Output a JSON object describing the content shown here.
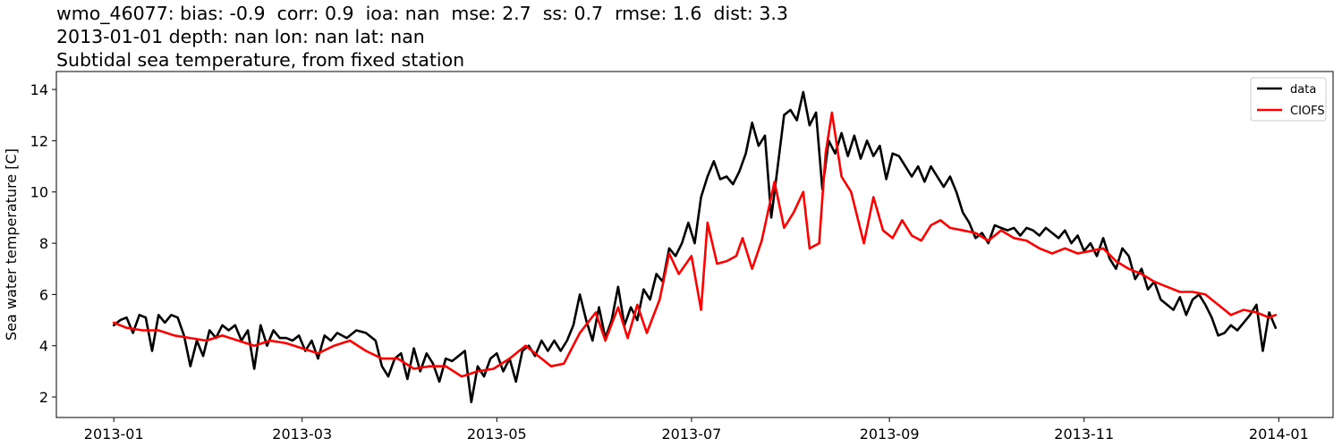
{
  "chart_data": {
    "type": "line",
    "title_lines": [
      "wmo_46077: bias: -0.9  corr: 0.9  ioa: nan  mse: 2.7  ss: 0.7  rmse: 1.6  dist: 3.3",
      "2013-01-01 depth: nan lon: nan lat: nan",
      "Subtidal sea temperature, from fixed station"
    ],
    "xlabel": "",
    "ylabel": "Sea water temperature [C]",
    "x_ticks": [
      "2013-01",
      "2013-03",
      "2013-05",
      "2013-07",
      "2013-09",
      "2013-11",
      "2014-01"
    ],
    "y_ticks": [
      2,
      4,
      6,
      8,
      10,
      12,
      14
    ],
    "xlim": [
      "2012-12-14",
      "2014-01-18"
    ],
    "ylim": [
      1.2,
      14.7
    ],
    "legend_position": "top-right",
    "series": [
      {
        "name": "data",
        "color": "#000000",
        "points": [
          [
            "2013-01-01",
            4.8
          ],
          [
            "2013-01-03",
            5.0
          ],
          [
            "2013-01-05",
            5.1
          ],
          [
            "2013-01-07",
            4.5
          ],
          [
            "2013-01-09",
            5.2
          ],
          [
            "2013-01-11",
            5.1
          ],
          [
            "2013-01-13",
            3.8
          ],
          [
            "2013-01-15",
            5.2
          ],
          [
            "2013-01-17",
            4.9
          ],
          [
            "2013-01-19",
            5.2
          ],
          [
            "2013-01-21",
            5.1
          ],
          [
            "2013-01-23",
            4.4
          ],
          [
            "2013-01-25",
            3.2
          ],
          [
            "2013-01-27",
            4.2
          ],
          [
            "2013-01-29",
            3.6
          ],
          [
            "2013-01-31",
            4.6
          ],
          [
            "2013-02-02",
            4.3
          ],
          [
            "2013-02-04",
            4.8
          ],
          [
            "2013-02-06",
            4.6
          ],
          [
            "2013-02-08",
            4.8
          ],
          [
            "2013-02-10",
            4.2
          ],
          [
            "2013-02-12",
            4.6
          ],
          [
            "2013-02-14",
            3.1
          ],
          [
            "2013-02-16",
            4.8
          ],
          [
            "2013-02-18",
            4.0
          ],
          [
            "2013-02-20",
            4.6
          ],
          [
            "2013-02-22",
            4.3
          ],
          [
            "2013-02-24",
            4.3
          ],
          [
            "2013-02-26",
            4.2
          ],
          [
            "2013-02-28",
            4.4
          ],
          [
            "2013-03-02",
            3.8
          ],
          [
            "2013-03-04",
            4.2
          ],
          [
            "2013-03-06",
            3.5
          ],
          [
            "2013-03-08",
            4.4
          ],
          [
            "2013-03-10",
            4.2
          ],
          [
            "2013-03-12",
            4.5
          ],
          [
            "2013-03-15",
            4.3
          ],
          [
            "2013-03-18",
            4.6
          ],
          [
            "2013-03-21",
            4.5
          ],
          [
            "2013-03-24",
            4.2
          ],
          [
            "2013-03-26",
            3.2
          ],
          [
            "2013-03-28",
            2.8
          ],
          [
            "2013-03-30",
            3.5
          ],
          [
            "2013-04-01",
            3.7
          ],
          [
            "2013-04-03",
            2.7
          ],
          [
            "2013-04-05",
            3.9
          ],
          [
            "2013-04-07",
            3.0
          ],
          [
            "2013-04-09",
            3.7
          ],
          [
            "2013-04-11",
            3.3
          ],
          [
            "2013-04-13",
            2.6
          ],
          [
            "2013-04-15",
            3.5
          ],
          [
            "2013-04-17",
            3.4
          ],
          [
            "2013-04-19",
            3.6
          ],
          [
            "2013-04-21",
            3.8
          ],
          [
            "2013-04-23",
            1.8
          ],
          [
            "2013-04-25",
            3.2
          ],
          [
            "2013-04-27",
            2.8
          ],
          [
            "2013-04-29",
            3.5
          ],
          [
            "2013-05-01",
            3.7
          ],
          [
            "2013-05-03",
            3.0
          ],
          [
            "2013-05-05",
            3.5
          ],
          [
            "2013-05-07",
            2.6
          ],
          [
            "2013-05-09",
            3.8
          ],
          [
            "2013-05-11",
            4.0
          ],
          [
            "2013-05-13",
            3.6
          ],
          [
            "2013-05-15",
            4.2
          ],
          [
            "2013-05-17",
            3.8
          ],
          [
            "2013-05-19",
            4.2
          ],
          [
            "2013-05-21",
            3.8
          ],
          [
            "2013-05-23",
            4.2
          ],
          [
            "2013-05-25",
            4.8
          ],
          [
            "2013-05-27",
            6.0
          ],
          [
            "2013-05-29",
            5.0
          ],
          [
            "2013-05-31",
            4.2
          ],
          [
            "2013-06-02",
            5.5
          ],
          [
            "2013-06-04",
            4.3
          ],
          [
            "2013-06-06",
            5.0
          ],
          [
            "2013-06-08",
            6.3
          ],
          [
            "2013-06-10",
            4.8
          ],
          [
            "2013-06-12",
            5.5
          ],
          [
            "2013-06-14",
            5.0
          ],
          [
            "2013-06-16",
            6.2
          ],
          [
            "2013-06-18",
            5.8
          ],
          [
            "2013-06-20",
            6.8
          ],
          [
            "2013-06-22",
            6.5
          ],
          [
            "2013-06-24",
            7.8
          ],
          [
            "2013-06-26",
            7.5
          ],
          [
            "2013-06-28",
            8.0
          ],
          [
            "2013-06-30",
            8.8
          ],
          [
            "2013-07-02",
            8.0
          ],
          [
            "2013-07-04",
            9.8
          ],
          [
            "2013-07-06",
            10.6
          ],
          [
            "2013-07-08",
            11.2
          ],
          [
            "2013-07-10",
            10.5
          ],
          [
            "2013-07-12",
            10.6
          ],
          [
            "2013-07-14",
            10.3
          ],
          [
            "2013-07-16",
            10.8
          ],
          [
            "2013-07-18",
            11.5
          ],
          [
            "2013-07-20",
            12.7
          ],
          [
            "2013-07-22",
            11.8
          ],
          [
            "2013-07-24",
            12.2
          ],
          [
            "2013-07-26",
            9.0
          ],
          [
            "2013-07-28",
            11.0
          ],
          [
            "2013-07-30",
            13.0
          ],
          [
            "2013-08-01",
            13.2
          ],
          [
            "2013-08-03",
            12.8
          ],
          [
            "2013-08-05",
            13.9
          ],
          [
            "2013-08-07",
            12.6
          ],
          [
            "2013-08-09",
            13.1
          ],
          [
            "2013-08-11",
            10.1
          ],
          [
            "2013-08-13",
            12.0
          ],
          [
            "2013-08-15",
            11.5
          ],
          [
            "2013-08-17",
            12.3
          ],
          [
            "2013-08-19",
            11.4
          ],
          [
            "2013-08-21",
            12.2
          ],
          [
            "2013-08-23",
            11.3
          ],
          [
            "2013-08-25",
            12.0
          ],
          [
            "2013-08-27",
            11.4
          ],
          [
            "2013-08-29",
            11.8
          ],
          [
            "2013-08-31",
            10.5
          ],
          [
            "2013-09-02",
            11.5
          ],
          [
            "2013-09-04",
            11.4
          ],
          [
            "2013-09-06",
            11.0
          ],
          [
            "2013-09-08",
            10.6
          ],
          [
            "2013-09-10",
            11.0
          ],
          [
            "2013-09-12",
            10.4
          ],
          [
            "2013-09-14",
            11.0
          ],
          [
            "2013-09-16",
            10.6
          ],
          [
            "2013-09-18",
            10.2
          ],
          [
            "2013-09-20",
            10.6
          ],
          [
            "2013-09-22",
            10.0
          ],
          [
            "2013-09-24",
            9.2
          ],
          [
            "2013-09-26",
            8.8
          ],
          [
            "2013-09-28",
            8.2
          ],
          [
            "2013-09-30",
            8.4
          ],
          [
            "2013-10-02",
            8.0
          ],
          [
            "2013-10-04",
            8.7
          ],
          [
            "2013-10-06",
            8.6
          ],
          [
            "2013-10-08",
            8.5
          ],
          [
            "2013-10-10",
            8.6
          ],
          [
            "2013-10-12",
            8.3
          ],
          [
            "2013-10-14",
            8.6
          ],
          [
            "2013-10-16",
            8.5
          ],
          [
            "2013-10-18",
            8.3
          ],
          [
            "2013-10-20",
            8.6
          ],
          [
            "2013-10-22",
            8.4
          ],
          [
            "2013-10-24",
            8.2
          ],
          [
            "2013-10-26",
            8.5
          ],
          [
            "2013-10-28",
            8.0
          ],
          [
            "2013-10-30",
            8.3
          ],
          [
            "2013-11-01",
            7.7
          ],
          [
            "2013-11-03",
            8.0
          ],
          [
            "2013-11-05",
            7.5
          ],
          [
            "2013-11-07",
            8.2
          ],
          [
            "2013-11-09",
            7.4
          ],
          [
            "2013-11-11",
            7.0
          ],
          [
            "2013-11-13",
            7.8
          ],
          [
            "2013-11-15",
            7.5
          ],
          [
            "2013-11-17",
            6.6
          ],
          [
            "2013-11-19",
            7.0
          ],
          [
            "2013-11-21",
            6.2
          ],
          [
            "2013-11-23",
            6.5
          ],
          [
            "2013-11-25",
            5.8
          ],
          [
            "2013-11-27",
            5.6
          ],
          [
            "2013-11-29",
            5.4
          ],
          [
            "2013-12-01",
            5.9
          ],
          [
            "2013-12-03",
            5.2
          ],
          [
            "2013-12-05",
            5.8
          ],
          [
            "2013-12-07",
            6.0
          ],
          [
            "2013-12-09",
            5.6
          ],
          [
            "2013-12-11",
            5.1
          ],
          [
            "2013-12-13",
            4.4
          ],
          [
            "2013-12-15",
            4.5
          ],
          [
            "2013-12-17",
            4.8
          ],
          [
            "2013-12-19",
            4.6
          ],
          [
            "2013-12-21",
            4.9
          ],
          [
            "2013-12-23",
            5.2
          ],
          [
            "2013-12-25",
            5.6
          ],
          [
            "2013-12-27",
            3.8
          ],
          [
            "2013-12-29",
            5.3
          ],
          [
            "2013-12-31",
            4.7
          ]
        ]
      },
      {
        "name": "CIOFS",
        "color": "#ff0000",
        "points": [
          [
            "2013-01-01",
            4.9
          ],
          [
            "2013-01-05",
            4.7
          ],
          [
            "2013-01-10",
            4.6
          ],
          [
            "2013-01-15",
            4.6
          ],
          [
            "2013-01-20",
            4.4
          ],
          [
            "2013-01-25",
            4.3
          ],
          [
            "2013-01-30",
            4.2
          ],
          [
            "2013-02-04",
            4.4
          ],
          [
            "2013-02-09",
            4.2
          ],
          [
            "2013-02-14",
            4.0
          ],
          [
            "2013-02-19",
            4.2
          ],
          [
            "2013-02-24",
            4.1
          ],
          [
            "2013-03-01",
            3.9
          ],
          [
            "2013-03-06",
            3.7
          ],
          [
            "2013-03-11",
            4.0
          ],
          [
            "2013-03-16",
            4.2
          ],
          [
            "2013-03-21",
            3.8
          ],
          [
            "2013-03-26",
            3.5
          ],
          [
            "2013-03-31",
            3.5
          ],
          [
            "2013-04-05",
            3.1
          ],
          [
            "2013-04-10",
            3.2
          ],
          [
            "2013-04-15",
            3.2
          ],
          [
            "2013-04-20",
            2.8
          ],
          [
            "2013-04-25",
            3.0
          ],
          [
            "2013-04-30",
            3.1
          ],
          [
            "2013-05-05",
            3.5
          ],
          [
            "2013-05-10",
            4.0
          ],
          [
            "2013-05-15",
            3.5
          ],
          [
            "2013-05-18",
            3.2
          ],
          [
            "2013-05-22",
            3.3
          ],
          [
            "2013-05-27",
            4.5
          ],
          [
            "2013-06-01",
            5.3
          ],
          [
            "2013-06-04",
            4.2
          ],
          [
            "2013-06-08",
            5.5
          ],
          [
            "2013-06-11",
            4.3
          ],
          [
            "2013-06-14",
            5.6
          ],
          [
            "2013-06-17",
            4.5
          ],
          [
            "2013-06-21",
            5.8
          ],
          [
            "2013-06-24",
            7.6
          ],
          [
            "2013-06-27",
            6.8
          ],
          [
            "2013-07-01",
            7.5
          ],
          [
            "2013-07-04",
            5.4
          ],
          [
            "2013-07-06",
            8.8
          ],
          [
            "2013-07-09",
            7.2
          ],
          [
            "2013-07-12",
            7.3
          ],
          [
            "2013-07-15",
            7.5
          ],
          [
            "2013-07-17",
            8.2
          ],
          [
            "2013-07-20",
            7.0
          ],
          [
            "2013-07-23",
            8.1
          ],
          [
            "2013-07-27",
            10.4
          ],
          [
            "2013-07-30",
            8.6
          ],
          [
            "2013-08-02",
            9.2
          ],
          [
            "2013-08-05",
            10.0
          ],
          [
            "2013-08-07",
            7.8
          ],
          [
            "2013-08-10",
            8.0
          ],
          [
            "2013-08-12",
            11.5
          ],
          [
            "2013-08-14",
            13.1
          ],
          [
            "2013-08-17",
            10.6
          ],
          [
            "2013-08-20",
            10.0
          ],
          [
            "2013-08-24",
            8.0
          ],
          [
            "2013-08-27",
            9.8
          ],
          [
            "2013-08-30",
            8.5
          ],
          [
            "2013-09-02",
            8.2
          ],
          [
            "2013-09-05",
            8.9
          ],
          [
            "2013-09-08",
            8.3
          ],
          [
            "2013-09-11",
            8.1
          ],
          [
            "2013-09-14",
            8.7
          ],
          [
            "2013-09-17",
            8.9
          ],
          [
            "2013-09-20",
            8.6
          ],
          [
            "2013-09-24",
            8.5
          ],
          [
            "2013-09-28",
            8.4
          ],
          [
            "2013-10-02",
            8.1
          ],
          [
            "2013-10-06",
            8.5
          ],
          [
            "2013-10-10",
            8.2
          ],
          [
            "2013-10-14",
            8.1
          ],
          [
            "2013-10-18",
            7.8
          ],
          [
            "2013-10-22",
            7.6
          ],
          [
            "2013-10-26",
            7.8
          ],
          [
            "2013-10-30",
            7.6
          ],
          [
            "2013-11-03",
            7.7
          ],
          [
            "2013-11-07",
            7.8
          ],
          [
            "2013-11-11",
            7.3
          ],
          [
            "2013-11-15",
            7.0
          ],
          [
            "2013-11-19",
            6.8
          ],
          [
            "2013-11-23",
            6.5
          ],
          [
            "2013-11-27",
            6.3
          ],
          [
            "2013-12-01",
            6.1
          ],
          [
            "2013-12-05",
            6.1
          ],
          [
            "2013-12-09",
            6.0
          ],
          [
            "2013-12-13",
            5.6
          ],
          [
            "2013-12-17",
            5.2
          ],
          [
            "2013-12-21",
            5.4
          ],
          [
            "2013-12-25",
            5.3
          ],
          [
            "2013-12-29",
            5.1
          ],
          [
            "2013-12-31",
            5.2
          ]
        ]
      }
    ]
  }
}
